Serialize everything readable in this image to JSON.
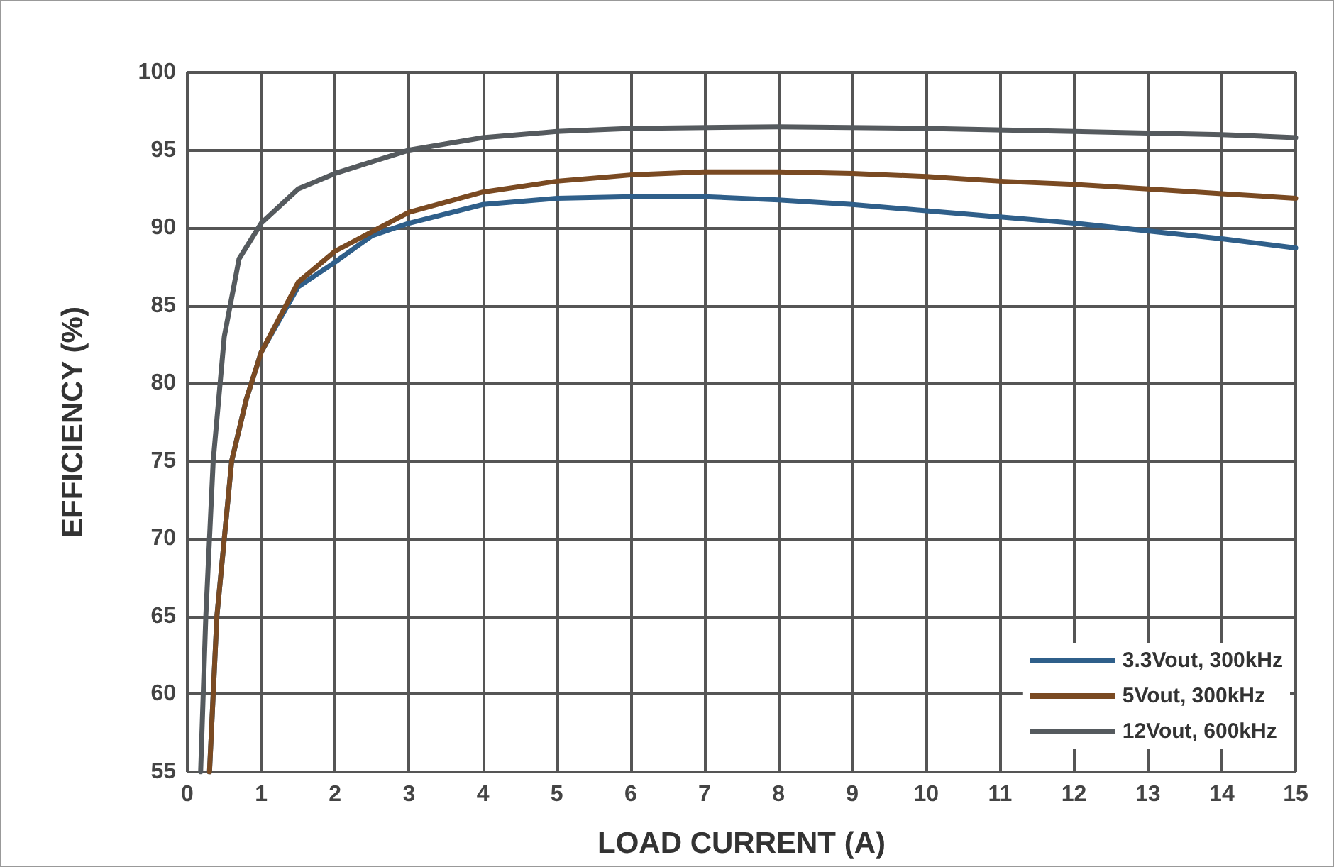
{
  "chart_data": {
    "type": "line",
    "xlabel": "LOAD CURRENT (A)",
    "ylabel": "EFFICIENCY (%)",
    "xlim": [
      0,
      15
    ],
    "xticks": [
      0,
      1,
      2,
      3,
      4,
      5,
      6,
      7,
      8,
      9,
      10,
      11,
      12,
      13,
      14,
      15
    ],
    "ylim": [
      55,
      100
    ],
    "yticks": [
      55,
      60,
      65,
      70,
      75,
      80,
      85,
      90,
      95,
      100
    ],
    "grid": true,
    "legend": "bottom right",
    "marker": "none",
    "line_style": "solid",
    "series": [
      {
        "name": "3.3Vout, 300kHz",
        "color": "#2f5f8a",
        "x": [
          0.3,
          0.4,
          0.6,
          0.8,
          1,
          1.5,
          2,
          2.5,
          3,
          4,
          5,
          6,
          7,
          8,
          9,
          10,
          11,
          12,
          13,
          14,
          15
        ],
        "values": [
          55,
          65,
          75,
          79,
          82,
          86.2,
          87.8,
          89.5,
          90.3,
          91.5,
          91.9,
          92,
          92,
          91.8,
          91.5,
          91.1,
          90.7,
          90.3,
          89.8,
          89.3,
          88.7
        ]
      },
      {
        "name": "5Vout, 300kHz",
        "color": "#7a4a22",
        "x": [
          0.3,
          0.4,
          0.6,
          0.8,
          1,
          1.5,
          2,
          3,
          4,
          5,
          6,
          7,
          8,
          9,
          10,
          11,
          12,
          13,
          14,
          15
        ],
        "values": [
          55,
          65,
          75,
          79,
          82,
          86.5,
          88.5,
          91,
          92.3,
          93,
          93.4,
          93.6,
          93.6,
          93.5,
          93.3,
          93,
          92.8,
          92.5,
          92.2,
          91.9
        ]
      },
      {
        "name": "12Vout, 600kHz",
        "color": "#555a5e",
        "x": [
          0.18,
          0.25,
          0.35,
          0.5,
          0.7,
          1,
          1.5,
          2,
          3,
          4,
          5,
          6,
          8,
          10,
          12,
          14,
          15
        ],
        "values": [
          55,
          65,
          75,
          83,
          88,
          90.3,
          92.5,
          93.5,
          95,
          95.8,
          96.2,
          96.4,
          96.5,
          96.4,
          96.2,
          96,
          95.8
        ]
      }
    ]
  }
}
